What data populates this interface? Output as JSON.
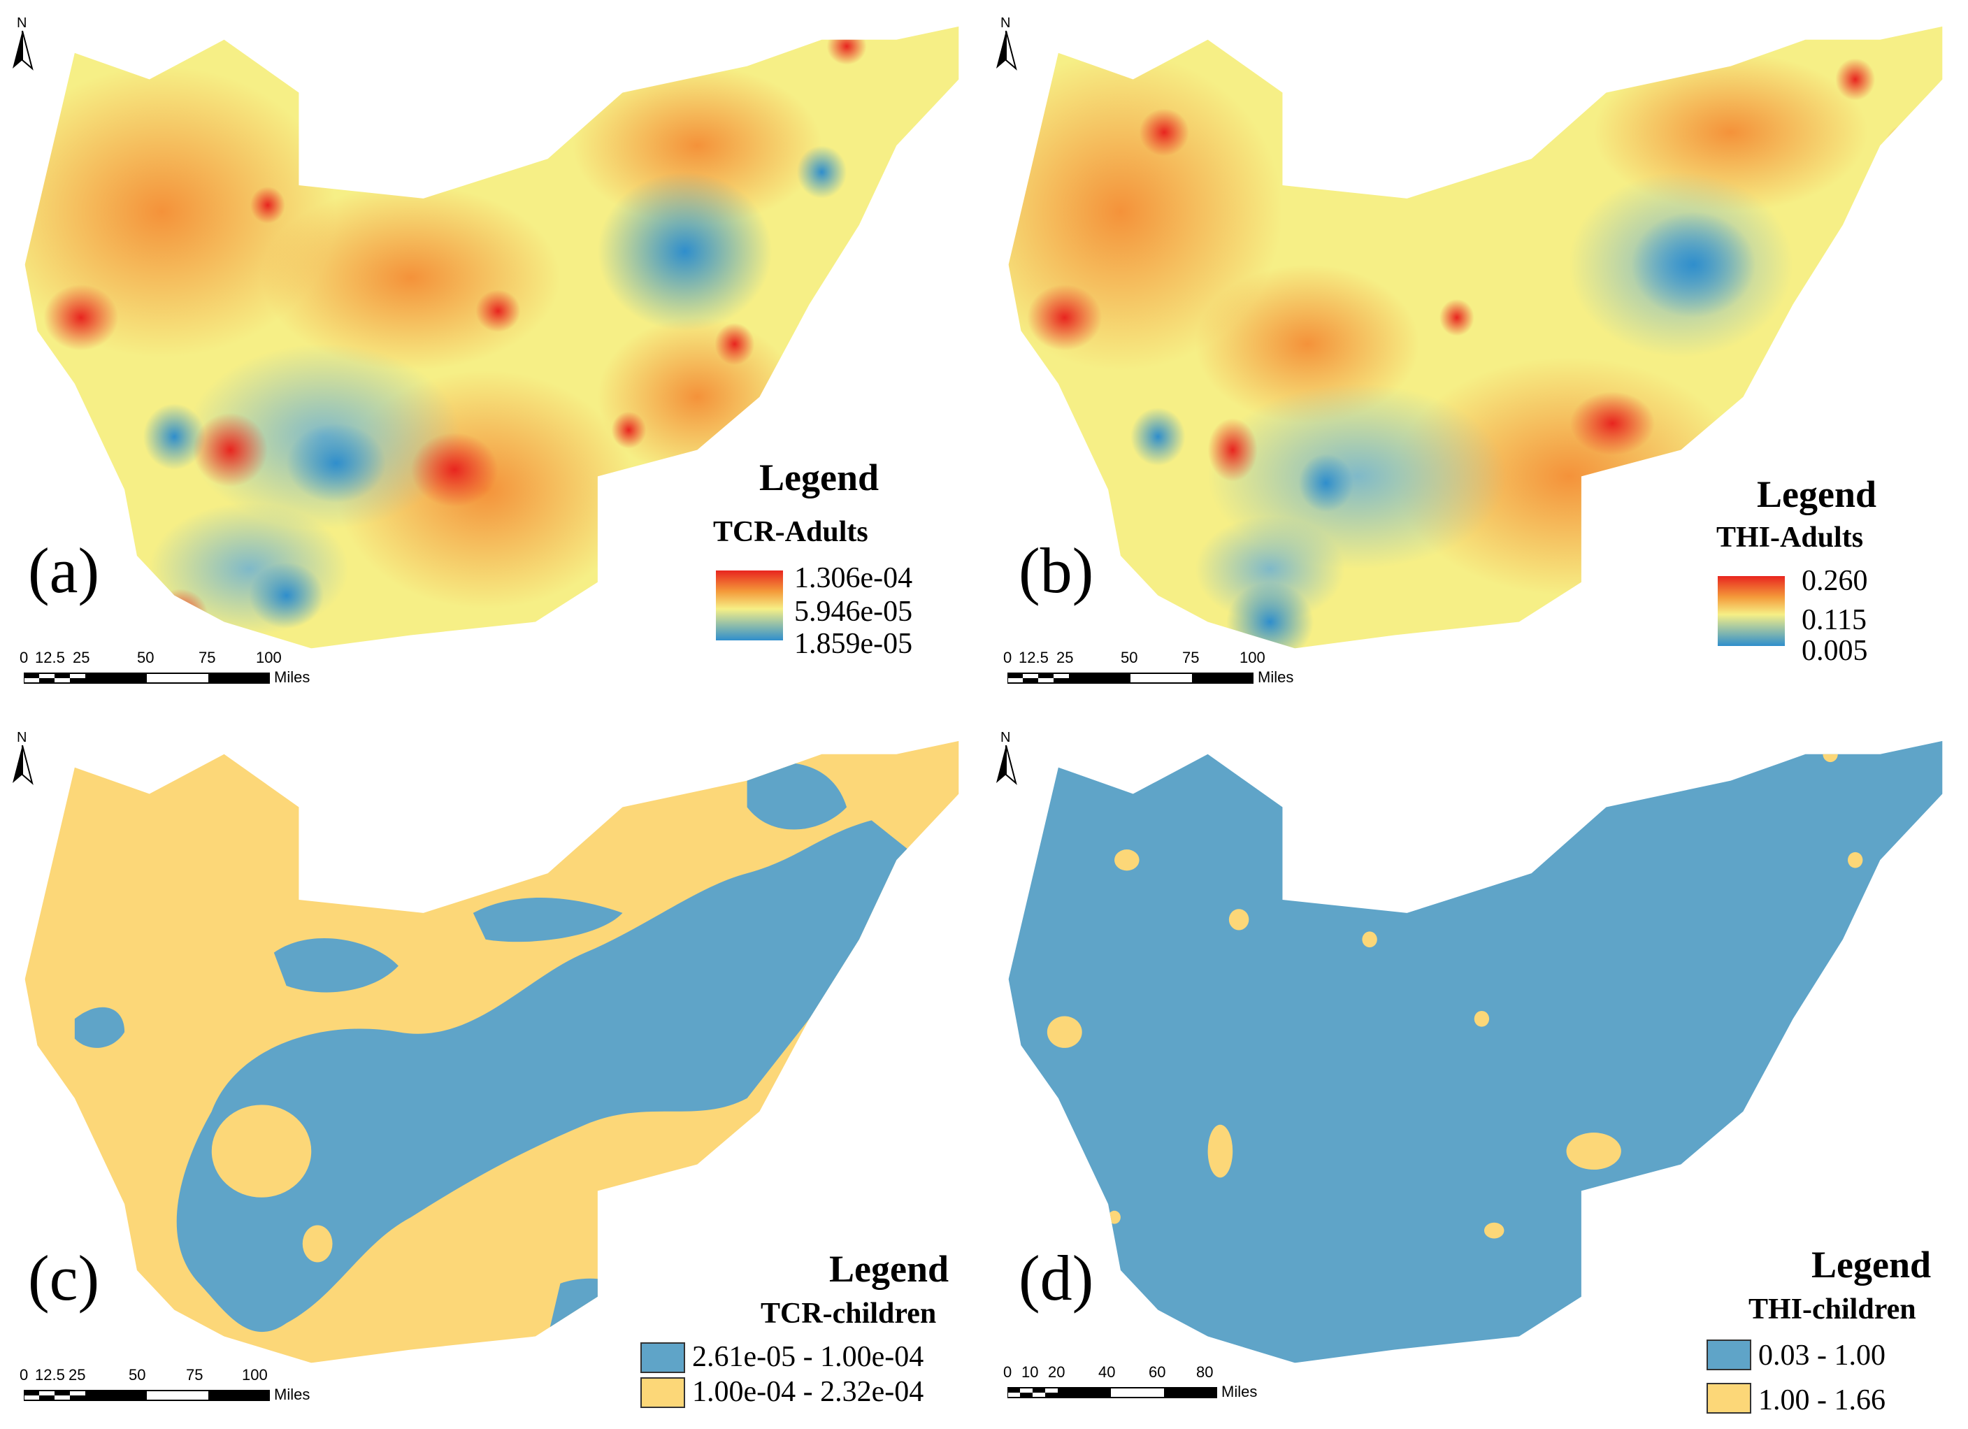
{
  "panels": {
    "a": {
      "letter": "(a)",
      "legend_title": "Legend",
      "legend_subtitle": "TCR-Adults",
      "values": [
        "1.306e-04",
        "5.946e-05",
        "1.859e-05"
      ],
      "scale_ticks": [
        "0",
        "12.5",
        "25",
        "50",
        "75",
        "100"
      ],
      "scale_unit": "Miles",
      "north": "N"
    },
    "b": {
      "letter": "(b)",
      "legend_title": "Legend",
      "legend_subtitle": "THI-Adults",
      "values": [
        "0.260",
        "0.115",
        "0.005"
      ],
      "scale_ticks": [
        "0",
        "12.5",
        "25",
        "50",
        "75",
        "100"
      ],
      "scale_unit": "Miles",
      "north": "N"
    },
    "c": {
      "letter": "(c)",
      "legend_title": "Legend",
      "legend_subtitle": "TCR-children",
      "classes": [
        "2.61e-05 - 1.00e-04",
        "1.00e-04 - 2.32e-04"
      ],
      "scale_ticks": [
        "0",
        "12.5",
        "25",
        "50",
        "75",
        "100"
      ],
      "scale_unit": "Miles",
      "north": "N"
    },
    "d": {
      "letter": "(d)",
      "legend_title": "Legend",
      "legend_subtitle": "THI-children",
      "classes": [
        "0.03 - 1.00",
        "1.00 - 1.66"
      ],
      "scale_ticks": [
        "0",
        "10",
        "20",
        "40",
        "60",
        "80"
      ],
      "scale_unit": "Miles",
      "north": "N"
    }
  },
  "colors": {
    "high": "#e8251f",
    "orange": "#f49a3a",
    "mid": "#f6ef86",
    "low": "#2f8ecc",
    "class_blue": "#5fa4c8",
    "class_yellow": "#fcd778"
  }
}
